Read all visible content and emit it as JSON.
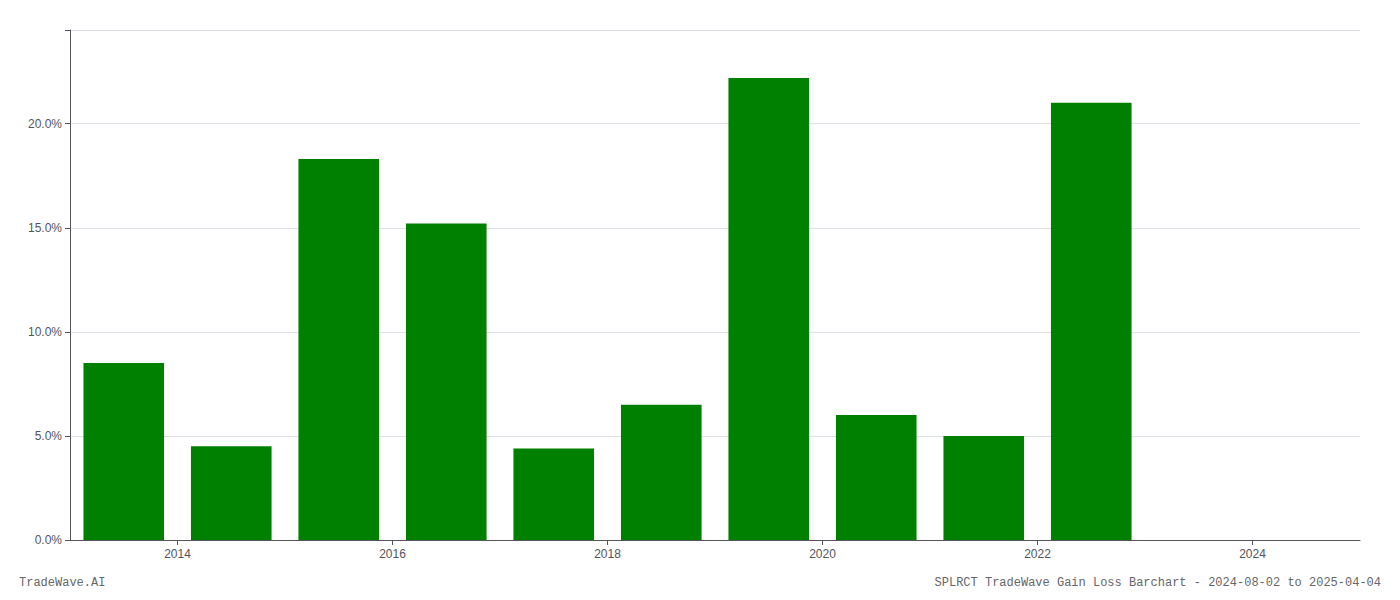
{
  "chart_data": {
    "type": "bar",
    "title": "SPLRCT TradeWave Gain Loss Barchart - 2024-08-02 to 2025-04-04",
    "annotations": [
      "TradeWave.AI"
    ],
    "x": [
      2013,
      2014,
      2015,
      2016,
      2017,
      2018,
      2019,
      2020,
      2021,
      2022,
      2023
    ],
    "values": [
      0.085,
      0.045,
      0.183,
      0.152,
      0.044,
      0.065,
      0.222,
      0.06,
      0.05,
      0.21,
      0.0
    ],
    "color": "#008000",
    "xlim": [
      2012.5,
      2024.5
    ],
    "xticks": [
      {
        "value": 2013.5,
        "label": "2014"
      },
      {
        "value": 2015.5,
        "label": "2016"
      },
      {
        "value": 2017.5,
        "label": "2018"
      },
      {
        "value": 2019.5,
        "label": "2020"
      },
      {
        "value": 2021.5,
        "label": "2022"
      },
      {
        "value": 2023.5,
        "label": "2024"
      }
    ],
    "ylim": [
      0,
      0.245
    ],
    "yticks": [
      {
        "value": 0.0,
        "label": "0.0%"
      },
      {
        "value": 0.05,
        "label": "5.0%"
      },
      {
        "value": 0.1,
        "label": "10.0%"
      },
      {
        "value": 0.15,
        "label": "15.0%"
      },
      {
        "value": 0.2,
        "label": "20.0%"
      }
    ],
    "grid": true
  }
}
